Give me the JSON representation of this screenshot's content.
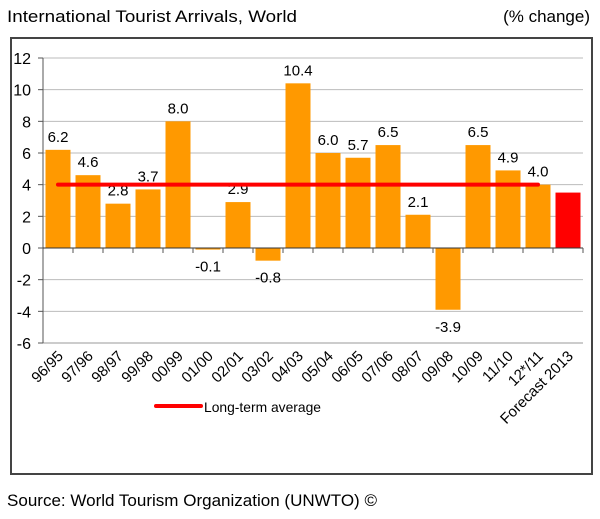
{
  "chart_data": {
    "type": "bar",
    "title": "International Tourist Arrivals, World",
    "unit_label": "(% change)",
    "source": "Source: World Tourism Organization (UNWTO) ©",
    "categories": [
      "96/95",
      "97/96",
      "98/97",
      "99/98",
      "00/99",
      "01/00",
      "02/01",
      "03/02",
      "04/03",
      "05/04",
      "06/05",
      "07/06",
      "08/07",
      "09/08",
      "10/09",
      "11/10",
      "12*/11",
      "Forecast 2013"
    ],
    "values": [
      6.2,
      4.6,
      2.8,
      3.7,
      8.0,
      -0.1,
      2.9,
      -0.8,
      10.4,
      6.0,
      5.7,
      6.5,
      2.1,
      -3.9,
      6.5,
      4.9,
      4.0,
      3.5
    ],
    "data_labels": [
      "6.2",
      "4.6",
      "2.8",
      "3.7",
      "8.0",
      "-0.1",
      "2.9",
      "-0.8",
      "10.4",
      "6.0",
      "5.7",
      "6.5",
      "2.1",
      "-3.9",
      "6.5",
      "4.9",
      "4.0",
      ""
    ],
    "bar_colors": [
      "#ff9900",
      "#ff9900",
      "#ff9900",
      "#ff9900",
      "#ff9900",
      "#ff9900",
      "#ff9900",
      "#ff9900",
      "#ff9900",
      "#ff9900",
      "#ff9900",
      "#ff9900",
      "#ff9900",
      "#ff9900",
      "#ff9900",
      "#ff9900",
      "#ff9900",
      "#ff0000"
    ],
    "ylim": [
      -6,
      12
    ],
    "yticks": [
      "12",
      "10",
      "8",
      "6",
      "4",
      "2",
      "0",
      "-2",
      "-4",
      "-6"
    ],
    "ytick_values": [
      12,
      10,
      8,
      6,
      4,
      2,
      0,
      -2,
      -4,
      -6
    ],
    "grid": true,
    "reference_line": {
      "name": "Long-term average",
      "value": 4,
      "color": "#ff0000",
      "from_category": 0,
      "to_category": 16
    },
    "legend": {
      "placement": "bottom",
      "entries": [
        "Long-term average"
      ]
    }
  }
}
